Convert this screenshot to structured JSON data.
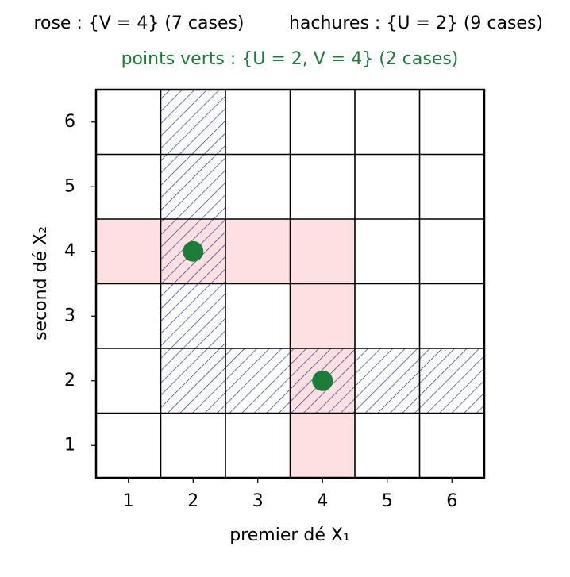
{
  "chart_data": {
    "type": "grid",
    "title_left": "rose : {V = 4} (7 cases)",
    "title_right": "hachures : {U = 2} (9 cases)",
    "subtitle": "points verts : {U = 2,  V = 4} (2 cases)",
    "subtitle_color": "#1b7d3a",
    "xlabel": "premier dé X₁",
    "ylabel": "second dé X₂",
    "xlim": [
      0.5,
      6.5
    ],
    "ylim": [
      0.5,
      6.5
    ],
    "xticks": [
      1,
      2,
      3,
      4,
      5,
      6
    ],
    "yticks": [
      1,
      2,
      3,
      4,
      5,
      6
    ],
    "pink_cells": {
      "color": "#ffe0e0",
      "x": [
        1,
        2,
        3,
        4,
        4,
        4,
        4
      ],
      "y": [
        4,
        4,
        4,
        4,
        3,
        2,
        1
      ]
    },
    "hatched_cells": {
      "color": "#2a3a9e",
      "x": [
        2,
        2,
        2,
        2,
        2,
        3,
        4,
        5,
        6
      ],
      "y": [
        2,
        3,
        4,
        5,
        6,
        2,
        2,
        2,
        2
      ]
    },
    "points": {
      "color": "#1b7d3a",
      "x": [
        2,
        4
      ],
      "y": [
        4,
        2
      ]
    }
  }
}
